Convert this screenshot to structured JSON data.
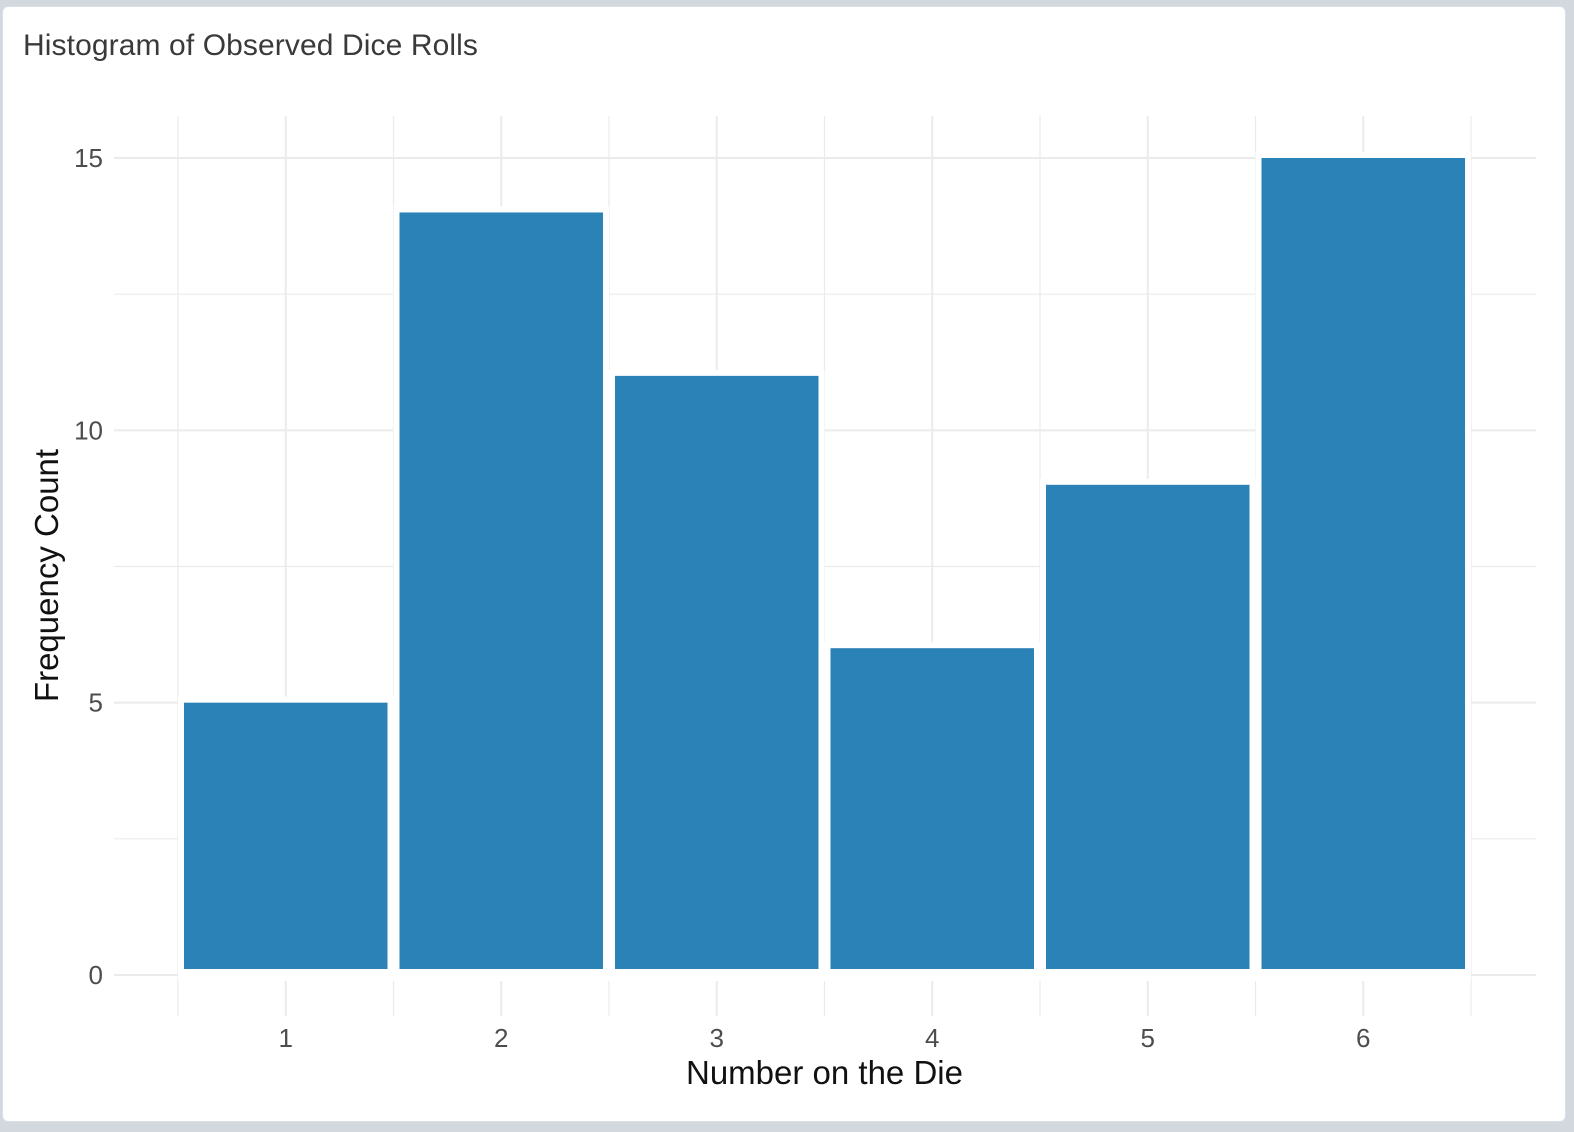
{
  "card": {
    "title": "Histogram of Observed Dice Rolls"
  },
  "chart_data": {
    "type": "bar",
    "title": "Histogram of Observed Dice Rolls",
    "categories": [
      "1",
      "2",
      "3",
      "4",
      "5",
      "6"
    ],
    "values": [
      5,
      14,
      11,
      6,
      9,
      15
    ],
    "xlabel": "Number on the Die",
    "ylabel": "Frequency Count",
    "ylim": [
      0,
      15.6
    ],
    "yticks": [
      0,
      5,
      10,
      15
    ],
    "grid": true,
    "bar_color": "#2a82b6",
    "grid_color": "#ebebeb",
    "legend": "none"
  }
}
